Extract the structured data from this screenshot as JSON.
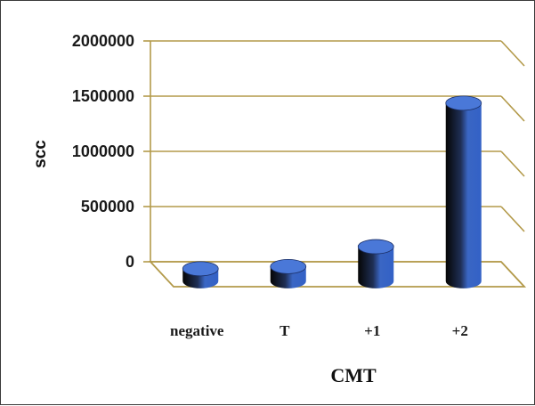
{
  "chart_data": {
    "type": "bar",
    "title": "",
    "xlabel": "CMT",
    "ylabel": "scc",
    "categories": [
      "negative",
      "T",
      "+1",
      "+2"
    ],
    "values": [
      -30000,
      20000,
      200000,
      1500000
    ],
    "ylim": [
      0,
      2000000
    ],
    "yticks": [
      "0",
      "500000",
      "1000000",
      "1500000",
      "2000000"
    ],
    "grid": true,
    "legend": "none",
    "style": "3d-cylinder",
    "colors": {
      "bar_face": "#3a66c4",
      "bar_shadow": "#0d0d0d",
      "bar_top": "#4a78d8",
      "gridline": "#b39a4a",
      "floor": "#ffffff"
    }
  }
}
